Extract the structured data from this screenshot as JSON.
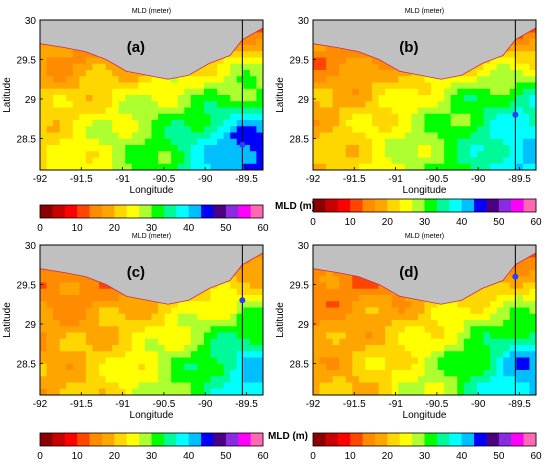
{
  "figure": {
    "colorbar_ticks": [
      "0",
      "10",
      "20",
      "30",
      "40",
      "50",
      "60"
    ],
    "colorbar_label": "MLD (m)",
    "colorscale": [
      "#8b0000",
      "#c80000",
      "#ff0000",
      "#ff4500",
      "#ff8c00",
      "#ffa500",
      "#ffd700",
      "#ffff00",
      "#adff2f",
      "#00ff00",
      "#00fa9a",
      "#00ffff",
      "#00bfff",
      "#0000ff",
      "#4b0082",
      "#8a2be2",
      "#ff00ff",
      "#ff69b4"
    ]
  },
  "chart_data": [
    {
      "type": "heatmap",
      "panel_label": "(a)",
      "title": "MLD (meter)",
      "xlabel": "Longitude",
      "ylabel": "Latitude",
      "xticks": [
        "-92",
        "-91.5",
        "-91",
        "-90.5",
        "-90",
        "-89.5"
      ],
      "yticks": [
        "30",
        "29.5",
        "29",
        "28.5"
      ],
      "xlim": [
        -92,
        -89.3
      ],
      "ylim": [
        28.1,
        30
      ],
      "colorbar": false,
      "transect_lon": -89.55,
      "marker": {
        "lon": -89.55,
        "lat": 28.42
      },
      "field_lon": [
        -92,
        -91.5,
        -91,
        -90.5,
        -90,
        -89.5
      ],
      "field_lat": [
        30,
        29.5,
        29,
        28.5
      ],
      "mld_values": [
        [
          18,
          15,
          14,
          12,
          10,
          8
        ],
        [
          17,
          16,
          18,
          20,
          22,
          25
        ],
        [
          20,
          22,
          25,
          28,
          30,
          32
        ],
        [
          22,
          25,
          28,
          32,
          38,
          45
        ]
      ]
    },
    {
      "type": "heatmap",
      "panel_label": "(b)",
      "title": "MLD (meter)",
      "xlabel": "Longitude",
      "ylabel": "Latitude",
      "xticks": [
        "-92",
        "-91.5",
        "-91",
        "-90.5",
        "-90",
        "-89.5"
      ],
      "yticks": [
        "30",
        "29.5",
        "29",
        "28.5"
      ],
      "xlim": [
        -92,
        -89.3
      ],
      "ylim": [
        28.1,
        30
      ],
      "colorbar": true,
      "transect_lon": -89.55,
      "marker": {
        "lon": -89.55,
        "lat": 28.8
      },
      "field_lon": [
        -92,
        -91.5,
        -91,
        -90.5,
        -90,
        -89.5
      ],
      "field_lat": [
        30,
        29.5,
        29,
        28.5
      ],
      "mld_values": [
        [
          16,
          14,
          12,
          10,
          9,
          8
        ],
        [
          15,
          16,
          17,
          20,
          22,
          22
        ],
        [
          18,
          20,
          24,
          28,
          32,
          35
        ],
        [
          20,
          22,
          26,
          30,
          35,
          40
        ]
      ]
    },
    {
      "type": "heatmap",
      "panel_label": "(c)",
      "title": "MLD (meter)",
      "xlabel": "Longitude",
      "ylabel": "Latitude",
      "xticks": [
        "-92",
        "-91.5",
        "-91",
        "-90.5",
        "-90",
        "-89.5"
      ],
      "yticks": [
        "30",
        "29.5",
        "29",
        "28.5"
      ],
      "xlim": [
        -92,
        -89.3
      ],
      "ylim": [
        28.1,
        30
      ],
      "colorbar": true,
      "transect_lon": -89.55,
      "marker": {
        "lon": -89.55,
        "lat": 29.3
      },
      "field_lon": [
        -92,
        -91.5,
        -91,
        -90.5,
        -90,
        -89.5
      ],
      "field_lat": [
        30,
        29.5,
        29,
        28.5
      ],
      "mld_values": [
        [
          16,
          14,
          13,
          11,
          10,
          9
        ],
        [
          15,
          14,
          16,
          18,
          20,
          22
        ],
        [
          17,
          18,
          20,
          24,
          28,
          32
        ],
        [
          18,
          20,
          24,
          28,
          33,
          40
        ]
      ]
    },
    {
      "type": "heatmap",
      "panel_label": "(d)",
      "title": "MLD (meter)",
      "xlabel": "Longitude",
      "ylabel": "Latitude",
      "xticks": [
        "-92",
        "-91.5",
        "-91",
        "-90.5",
        "-90",
        "-89.5"
      ],
      "yticks": [
        "30",
        "29.5",
        "29",
        "28.5"
      ],
      "xlim": [
        -92,
        -89.3
      ],
      "ylim": [
        28.1,
        30
      ],
      "colorbar": true,
      "transect_lon": -89.55,
      "marker": {
        "lon": -89.55,
        "lat": 29.6
      },
      "field_lon": [
        -92,
        -91.5,
        -91,
        -90.5,
        -90,
        -89.5
      ],
      "field_lat": [
        30,
        29.5,
        29,
        28.5
      ],
      "mld_values": [
        [
          16,
          14,
          13,
          11,
          10,
          9
        ],
        [
          15,
          14,
          16,
          18,
          20,
          22
        ],
        [
          16,
          18,
          20,
          24,
          28,
          32
        ],
        [
          18,
          20,
          24,
          28,
          34,
          42
        ]
      ]
    }
  ]
}
